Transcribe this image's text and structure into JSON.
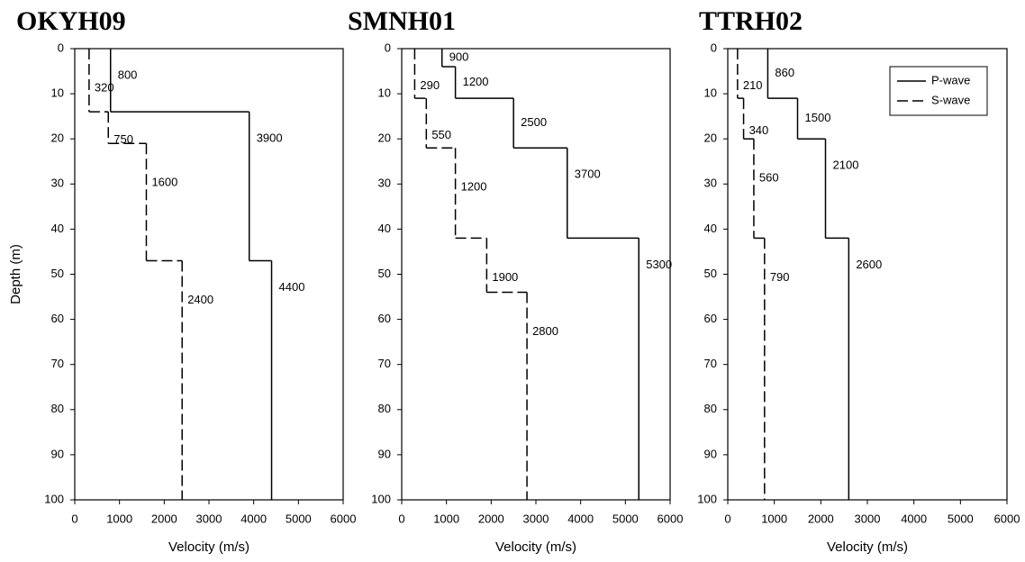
{
  "chart_data": [
    {
      "type": "step-profile",
      "title": "OKYH09",
      "xlabel": "Velocity (m/s)",
      "ylabel": "Depth (m)",
      "xlim": [
        0,
        6000
      ],
      "xticks": [
        0,
        1000,
        2000,
        3000,
        4000,
        5000,
        6000
      ],
      "ylim": [
        0,
        100
      ],
      "yticks": [
        0,
        10,
        20,
        30,
        40,
        50,
        60,
        70,
        80,
        90,
        100
      ],
      "y_inverted": true,
      "series": [
        {
          "color": "#000000",
          "dash": "solid",
          "depths": [
            0,
            14,
            47,
            100
          ],
          "values": [
            800,
            3900,
            4400
          ]
        },
        {
          "color": "#000000",
          "dash": "dashed",
          "depths": [
            0,
            14,
            21,
            47,
            100
          ],
          "values": [
            320,
            750,
            1600,
            2400
          ]
        }
      ]
    },
    {
      "type": "step-profile",
      "title": "SMNH01",
      "xlabel": "Velocity (m/s)",
      "xlim": [
        0,
        6000
      ],
      "xticks": [
        0,
        1000,
        2000,
        3000,
        4000,
        5000,
        6000
      ],
      "ylim": [
        0,
        100
      ],
      "yticks": [
        0,
        10,
        20,
        30,
        40,
        50,
        60,
        70,
        80,
        90,
        100
      ],
      "y_inverted": true,
      "series": [
        {
          "color": "#000000",
          "dash": "solid",
          "depths": [
            0,
            4,
            11,
            22,
            42,
            100
          ],
          "values": [
            900,
            1200,
            2500,
            3700,
            5300
          ]
        },
        {
          "color": "#000000",
          "dash": "dashed",
          "depths": [
            0,
            11,
            22,
            42,
            54,
            100
          ],
          "values": [
            290,
            550,
            1200,
            1900,
            2800
          ]
        }
      ]
    },
    {
      "type": "step-profile",
      "title": "TTRH02",
      "xlabel": "Velocity (m/s)",
      "xlim": [
        0,
        6000
      ],
      "xticks": [
        0,
        1000,
        2000,
        3000,
        4000,
        5000,
        6000
      ],
      "ylim": [
        0,
        100
      ],
      "yticks": [
        0,
        10,
        20,
        30,
        40,
        50,
        60,
        70,
        80,
        90,
        100
      ],
      "y_inverted": true,
      "legend": "upper right",
      "series": [
        {
          "name": "P-wave",
          "color": "#000000",
          "dash": "solid",
          "depths": [
            0,
            11,
            20,
            42,
            100
          ],
          "values": [
            860,
            1500,
            2100,
            2600
          ]
        },
        {
          "name": "S-wave",
          "color": "#000000",
          "dash": "dashed",
          "depths": [
            0,
            11,
            20,
            42,
            100
          ],
          "values": [
            210,
            340,
            560,
            790
          ]
        }
      ]
    }
  ]
}
